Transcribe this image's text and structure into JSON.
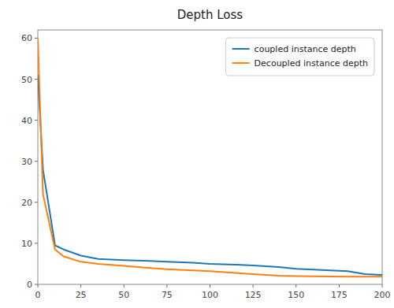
{
  "chart_data": {
    "type": "line",
    "title": "Depth Loss",
    "x": [
      0,
      3,
      10,
      15,
      25,
      35,
      50,
      65,
      75,
      90,
      100,
      115,
      125,
      140,
      150,
      160,
      170,
      180,
      190,
      200
    ],
    "series": [
      {
        "name": "coupled instance depth",
        "color": "#1f77b4",
        "values": [
          51,
          28,
          9.5,
          8.5,
          7.0,
          6.2,
          5.9,
          5.7,
          5.5,
          5.3,
          5.0,
          4.8,
          4.6,
          4.2,
          3.8,
          3.6,
          3.4,
          3.2,
          2.5,
          2.3
        ]
      },
      {
        "name": "Decoupled instance depth",
        "color": "#ff7f0e",
        "values": [
          60,
          22,
          8.5,
          6.8,
          5.5,
          5.0,
          4.5,
          4.0,
          3.7,
          3.4,
          3.2,
          2.8,
          2.5,
          2.1,
          2.0,
          1.95,
          1.9,
          1.85,
          1.85,
          1.85
        ]
      }
    ],
    "xlim": [
      0,
      200
    ],
    "ylim": [
      0,
      62
    ],
    "xticks": [
      0,
      25,
      50,
      75,
      100,
      125,
      150,
      175,
      200
    ],
    "yticks": [
      0,
      10,
      20,
      30,
      40,
      50,
      60
    ],
    "grid": false,
    "legend": "upper right"
  }
}
